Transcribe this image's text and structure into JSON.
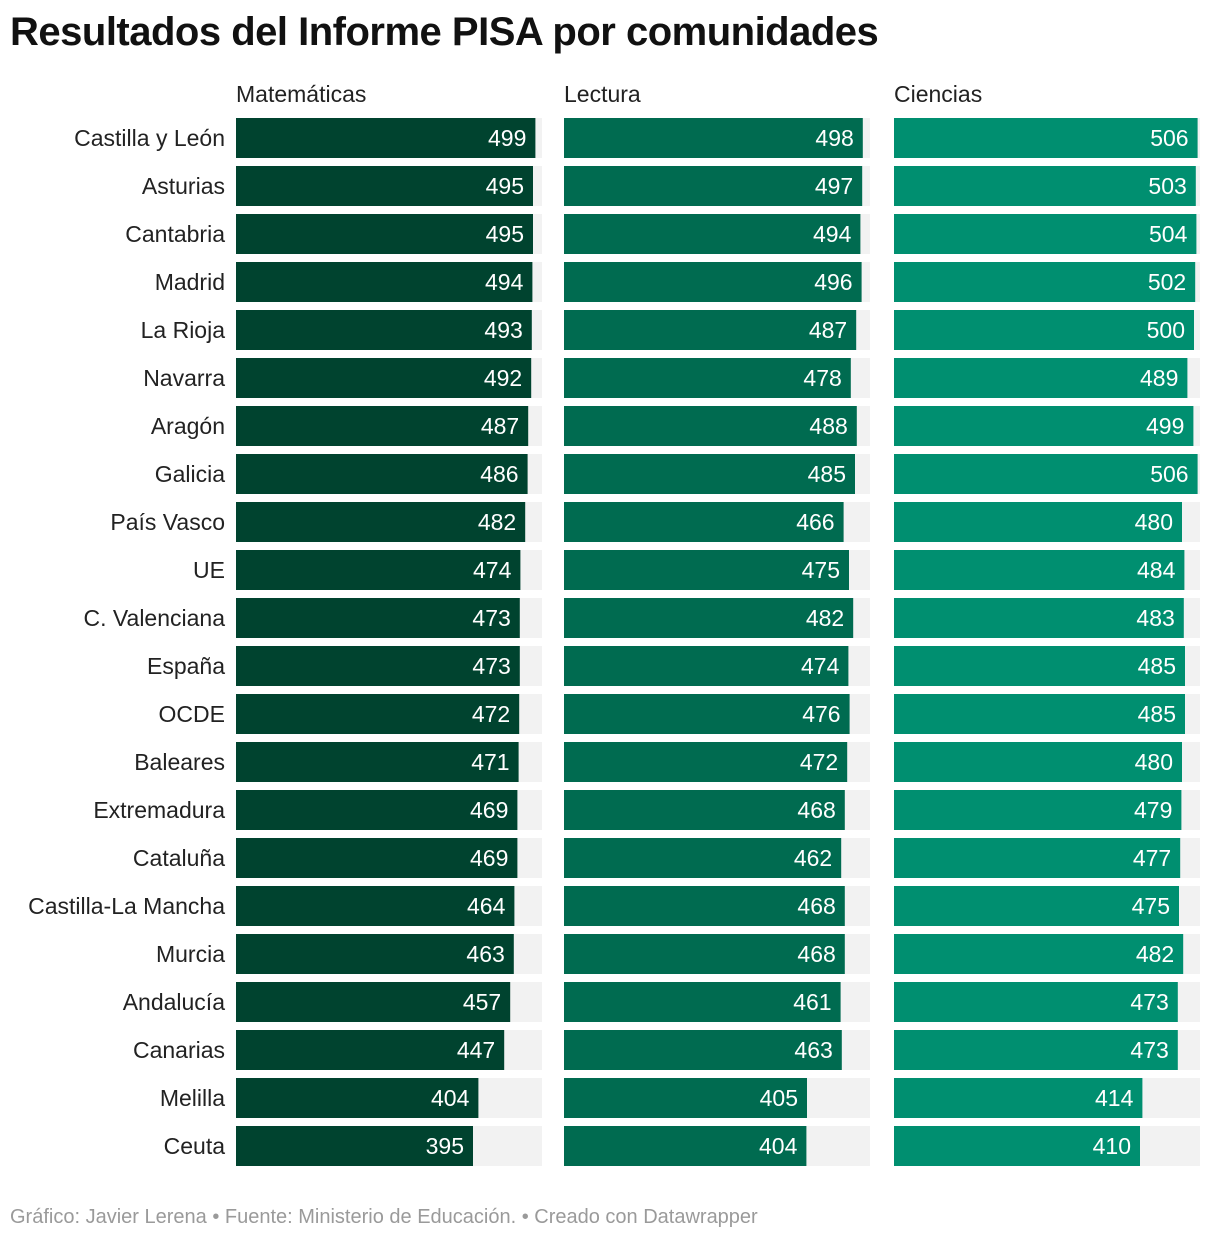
{
  "title": "Resultados del Informe PISA por comunidades",
  "footer": "Gráfico: Javier Lerena • Fuente: Ministerio de Educación. • Creado con Datawrapper",
  "chart_data": {
    "type": "bar",
    "orientation": "horizontal",
    "categories": [
      "Castilla y León",
      "Asturias",
      "Cantabria",
      "Madrid",
      "La Rioja",
      "Navarra",
      "Aragón",
      "Galicia",
      "País Vasco",
      "UE",
      "C. Valenciana",
      "España",
      "OCDE",
      "Baleares",
      "Extremadura",
      "Cataluña",
      "Castilla-La Mancha",
      "Murcia",
      "Andalucía",
      "Canarias",
      "Melilla",
      "Ceuta"
    ],
    "series": [
      {
        "name": "Matemáticas",
        "color": "#00432f",
        "values": [
          499,
          495,
          495,
          494,
          493,
          492,
          487,
          486,
          482,
          474,
          473,
          473,
          472,
          471,
          469,
          469,
          464,
          463,
          457,
          447,
          404,
          395
        ]
      },
      {
        "name": "Lectura",
        "color": "#006b50",
        "values": [
          498,
          497,
          494,
          496,
          487,
          478,
          488,
          485,
          466,
          475,
          482,
          474,
          476,
          472,
          468,
          462,
          468,
          468,
          461,
          463,
          405,
          404
        ]
      },
      {
        "name": "Ciencias",
        "color": "#008f70",
        "values": [
          506,
          503,
          504,
          502,
          500,
          489,
          499,
          506,
          480,
          484,
          483,
          485,
          485,
          480,
          479,
          477,
          475,
          482,
          473,
          473,
          414,
          410
        ]
      }
    ],
    "background_bar_color": "#f2f2f2",
    "xlim": [
      0,
      510
    ],
    "legend": "none",
    "grid": false
  }
}
